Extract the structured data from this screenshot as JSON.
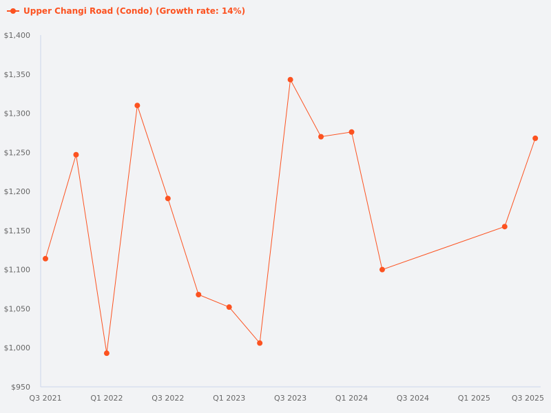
{
  "chart_data": {
    "type": "line",
    "title": "",
    "xlabel": "",
    "ylabel": "",
    "color": "#fc5220",
    "ylim": [
      950,
      1400
    ],
    "yticks": [
      950,
      1000,
      1050,
      1100,
      1150,
      1200,
      1250,
      1300,
      1350,
      1400
    ],
    "ytick_labels": [
      "$950",
      "$1,000",
      "$1,050",
      "$1,100",
      "$1,150",
      "$1,200",
      "$1,250",
      "$1,300",
      "$1,350",
      "$1,400"
    ],
    "xtick_labels": [
      "Q3 2021",
      "Q1 2022",
      "Q3 2022",
      "Q1 2023",
      "Q3 2023",
      "Q1 2024",
      "Q3 2024",
      "Q1 2025",
      "Q3 2025"
    ],
    "legend": {
      "label": "Upper Changi Road (Condo) (Growth rate: 14%)",
      "position": "top-left"
    },
    "series": [
      {
        "name": "Upper Changi Road (Condo) (Growth rate: 14%)",
        "x": [
          "Q3 2021",
          "Q4 2021",
          "Q1 2022",
          "Q2 2022",
          "Q3 2022",
          "Q4 2022",
          "Q1 2023",
          "Q2 2023",
          "Q3 2023",
          "Q4 2023",
          "Q1 2024",
          "Q2 2024",
          "Q2 2025",
          "Q3 2025"
        ],
        "values": [
          1114,
          1247,
          993,
          1310,
          1191,
          1068,
          1052,
          1006,
          1343,
          1270,
          1276,
          1100,
          1155,
          1268
        ]
      }
    ]
  }
}
